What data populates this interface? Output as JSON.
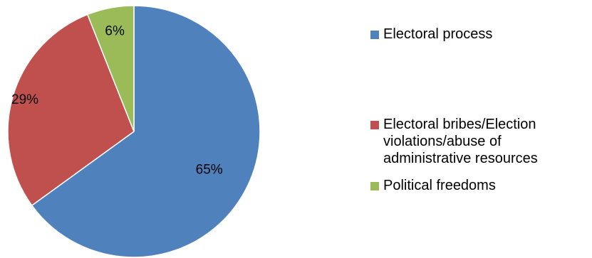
{
  "chart_data": {
    "type": "pie",
    "title": "",
    "slices": [
      {
        "label": "Electoral process",
        "value": 65,
        "display": "65%",
        "color": "#4F81BD"
      },
      {
        "label": "Electoral bribes/Election violations/abuse of administrative resources",
        "value": 29,
        "display": "29%",
        "color": "#C0504D"
      },
      {
        "label": "Political freedoms",
        "value": 6,
        "display": "6%",
        "color": "#9BBB59"
      }
    ],
    "legend_position": "right"
  }
}
